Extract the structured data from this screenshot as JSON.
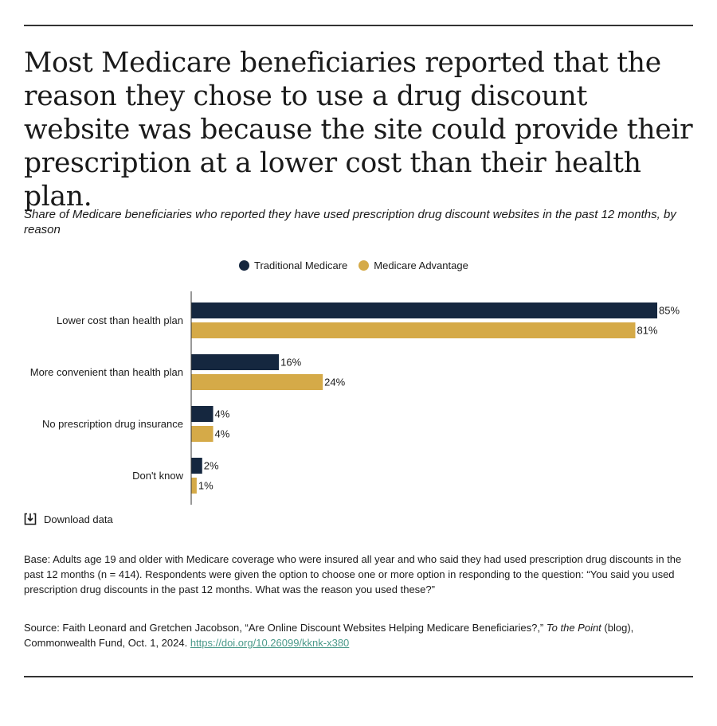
{
  "title": "Most Medicare beneficiaries reported that the reason they chose to use a drug discount website was because the site could provide their prescription at a lower cost than their health plan.",
  "subtitle": "Share of Medicare beneficiaries who reported they have used prescription drug discount websites in the past 12 months, by reason",
  "download_label": "Download data",
  "notes": {
    "base": "Base: Adults age 19 and older with Medicare coverage who were insured all year and who said they had used prescription drug discounts in the past 12 months (n = 414). Respondents were given the option to choose one or more option in responding to the question: “You said you used prescription drug discounts in the past 12 months. What was the reason you used these?”",
    "source_prefix": "Source: Faith Leonard and Gretchen Jacobson, “Are Online Discount Websites Helping Medicare Beneficiaries?,” ",
    "source_italic": "To the Point",
    "source_suffix": " (blog), Commonwealth Fund, Oct. 1, 2024. ",
    "source_link": "https://doi.org/10.26099/kknk-x380"
  },
  "chart_data": {
    "type": "bar",
    "orientation": "horizontal",
    "categories": [
      "Lower cost than health plan",
      "More convenient than health plan",
      "No prescription drug insurance",
      "Don't know"
    ],
    "series": [
      {
        "name": "Traditional Medicare",
        "color": "#15273f",
        "values": [
          85,
          16,
          4,
          2
        ],
        "labels": [
          "85%",
          "16%",
          "4%",
          "2%"
        ]
      },
      {
        "name": "Medicare Advantage",
        "color": "#d5aa48",
        "values": [
          81,
          24,
          4,
          1
        ],
        "labels": [
          "81%",
          "24%",
          "4%",
          "1%"
        ]
      }
    ],
    "xlim": [
      0,
      85
    ],
    "unit": "%",
    "legend_position": "top-center",
    "grid": false
  }
}
